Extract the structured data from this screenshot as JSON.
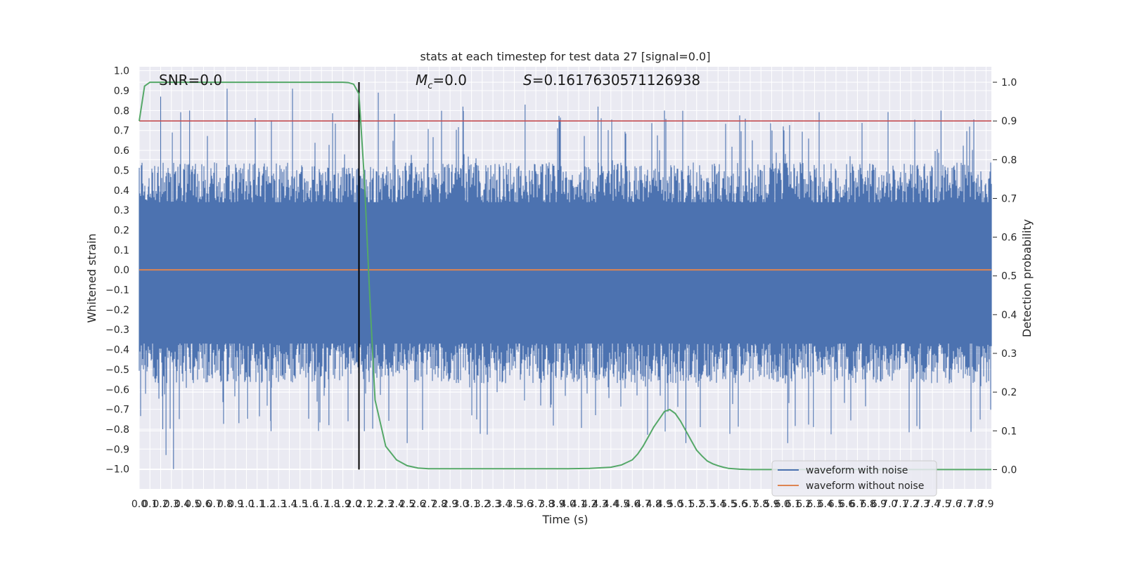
{
  "chart_data": {
    "type": "line",
    "title": "stats at each timestep for test data 27 [signal=0.0]",
    "xlabel": "Time (s)",
    "ylabel": "Whitened strain",
    "ylabel_right": "Detection probability",
    "xlim": [
      0.0,
      7.95
    ],
    "ylim": [
      -1.1,
      1.02
    ],
    "ylim_right": [
      -0.05,
      1.04
    ],
    "x_ticks": [
      "0.0",
      "0.1",
      "0.2",
      "0.3",
      "0.4",
      "0.5",
      "0.6",
      "0.7",
      "0.8",
      "0.9",
      "1.0",
      "1.1",
      "1.2",
      "1.3",
      "1.4",
      "1.5",
      "1.6",
      "1.7",
      "1.8",
      "1.9",
      "2.0",
      "2.1",
      "2.2",
      "2.3",
      "2.4",
      "2.5",
      "2.6",
      "2.7",
      "2.8",
      "2.9",
      "3.0",
      "3.1",
      "3.2",
      "3.3",
      "3.4",
      "3.5",
      "3.6",
      "3.7",
      "3.8",
      "3.9",
      "4.0",
      "4.1",
      "4.2",
      "4.3",
      "4.4",
      "4.5",
      "4.6",
      "4.7",
      "4.8",
      "4.9",
      "5.0",
      "5.1",
      "5.2",
      "5.3",
      "5.4",
      "5.5",
      "5.6",
      "5.7",
      "5.8",
      "5.9",
      "6.0",
      "6.1",
      "6.2",
      "6.3",
      "6.4",
      "6.5",
      "6.6",
      "6.7",
      "6.8",
      "6.9",
      "7.0",
      "7.1",
      "7.2",
      "7.3",
      "7.4",
      "7.5",
      "7.6",
      "7.7",
      "7.8",
      "7.9"
    ],
    "y_ticks": [
      "1.0",
      "0.9",
      "0.8",
      "0.7",
      "0.6",
      "0.5",
      "0.4",
      "0.3",
      "0.2",
      "0.1",
      "0.0",
      "−0.1",
      "−0.2",
      "−0.3",
      "−0.4",
      "−0.5",
      "−0.6",
      "−0.7",
      "−0.8",
      "−0.9",
      "−1.0"
    ],
    "y_ticks_right": [
      "1.0",
      "0.9",
      "0.8",
      "0.7",
      "0.6",
      "0.5",
      "0.4",
      "0.3",
      "0.2",
      "0.1",
      "0.0"
    ],
    "annotations": [
      {
        "text": "SNR=0.0"
      },
      {
        "text_prefix": "M",
        "subscript": "c",
        "text_suffix": "=0.0"
      },
      {
        "text_prefix": "S",
        "text_suffix": "=0.1617630571126938"
      }
    ],
    "threshold_line": {
      "value": 0.9,
      "axis": "right",
      "color": "#c44e52"
    },
    "marker_line": {
      "x": 2.05,
      "color": "#000000"
    },
    "series": [
      {
        "name": "waveform with noise",
        "color": "#4c72b0",
        "style": "noise",
        "amplitude_typical": 0.4,
        "peaks_max": 0.92,
        "troughs_min": -1.0
      },
      {
        "name": "waveform without noise",
        "color": "#dd8452",
        "values_constant": 0.0
      },
      {
        "name": "detection probability",
        "color": "#55a868",
        "axis": "right",
        "x": [
          0.0,
          0.05,
          0.1,
          0.15,
          0.2,
          0.3,
          0.5,
          0.8,
          1.0,
          1.5,
          1.8,
          1.9,
          1.95,
          2.0,
          2.05,
          2.1,
          2.15,
          2.2,
          2.3,
          2.4,
          2.5,
          2.6,
          2.7,
          2.8,
          3.0,
          3.2,
          3.4,
          3.6,
          3.8,
          4.0,
          4.2,
          4.4,
          4.5,
          4.6,
          4.65,
          4.7,
          4.75,
          4.8,
          4.85,
          4.9,
          4.95,
          5.0,
          5.05,
          5.1,
          5.15,
          5.2,
          5.25,
          5.3,
          5.35,
          5.4,
          5.45,
          5.5,
          5.6,
          5.7,
          5.8,
          5.9,
          6.0,
          6.5,
          7.0,
          7.5,
          7.95
        ],
        "y": [
          0.9,
          0.99,
          1.0,
          1.0,
          1.0,
          1.0,
          1.0,
          1.0,
          1.0,
          1.0,
          1.0,
          1.0,
          0.999,
          0.995,
          0.97,
          0.75,
          0.45,
          0.18,
          0.06,
          0.025,
          0.01,
          0.004,
          0.002,
          0.002,
          0.002,
          0.002,
          0.002,
          0.002,
          0.002,
          0.002,
          0.003,
          0.006,
          0.012,
          0.025,
          0.04,
          0.06,
          0.085,
          0.11,
          0.13,
          0.15,
          0.155,
          0.145,
          0.125,
          0.1,
          0.075,
          0.05,
          0.035,
          0.022,
          0.015,
          0.01,
          0.006,
          0.003,
          0.001,
          0.0,
          0.0,
          0.0,
          0.0,
          0.0,
          0.0,
          0.0,
          0.0
        ]
      }
    ],
    "legend": {
      "placement": "lower-right",
      "entries": [
        "waveform with noise",
        "waveform without noise"
      ]
    },
    "grid": true,
    "plot_background": "#eaeaf2"
  }
}
